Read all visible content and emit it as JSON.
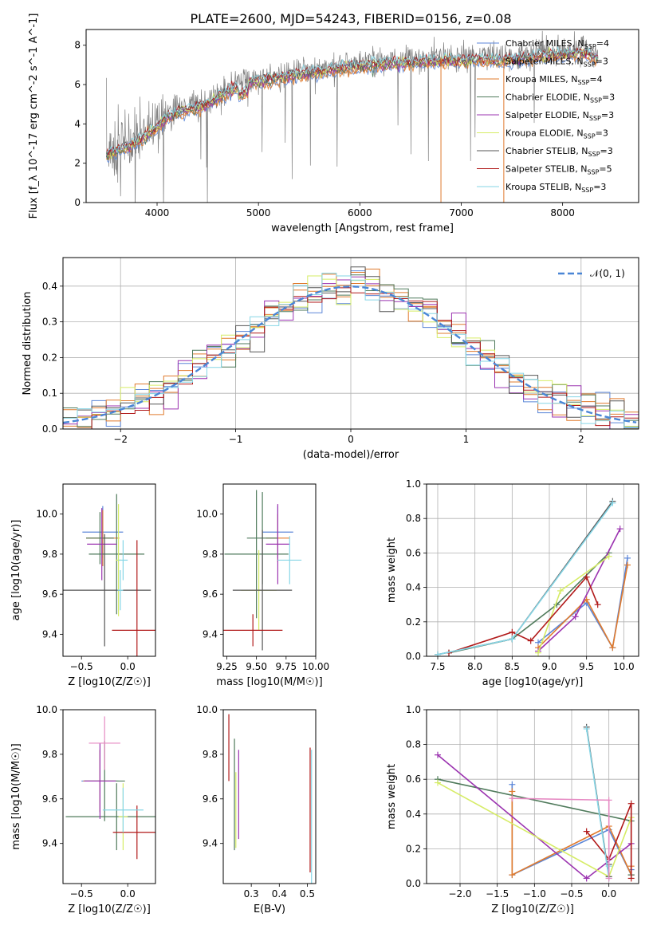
{
  "figure": {
    "title": "PLATE=2600, MJD=54243, FIBERID=0156, z=0.08"
  },
  "models": [
    {
      "name": "Chabrier MILES",
      "nssp": "4",
      "color": "#5b86d8"
    },
    {
      "name": "Salpeter MILES",
      "nssp": "3",
      "color": "#e07b2e"
    },
    {
      "name": "Kroupa MILES",
      "nssp": "4",
      "color": "#e07b2e"
    },
    {
      "name": "Chabrier ELODIE",
      "nssp": "3",
      "color": "#4f7a5b"
    },
    {
      "name": "Salpeter ELODIE",
      "nssp": "3",
      "color": "#9b33b0"
    },
    {
      "name": "Kroupa ELODIE",
      "nssp": "3",
      "color": "#d6ec66"
    },
    {
      "name": "Chabrier STELIB",
      "nssp": "3",
      "color": "#555555"
    },
    {
      "name": "Salpeter STELIB",
      "nssp": "5",
      "color": "#b11a1a"
    },
    {
      "name": "Kroupa STELIB",
      "nssp": "3",
      "color": "#86d6e6"
    }
  ],
  "chart_data": [
    {
      "id": "spectrum",
      "type": "line",
      "title": "PLATE=2600, MJD=54243, FIBERID=0156, z=0.08",
      "xlabel": "wavelength [Angstrom, rest frame]",
      "ylabel": "Flux [f_λ 10^-17 erg cm^-2 s^-1 A^-1]",
      "xlim": [
        3300,
        8750
      ],
      "ylim": [
        0,
        8.8
      ],
      "xticks": [
        "4000",
        "5000",
        "6000",
        "7000",
        "8000"
      ],
      "yticks": [
        "0",
        "2",
        "4",
        "6",
        "8"
      ],
      "legend_position": "top-right",
      "data_color": "#808080",
      "data_anchors": {
        "x": [
          3500,
          3600,
          3700,
          3800,
          3900,
          4000,
          4100,
          4200,
          4300,
          4400,
          4500,
          4700,
          4900,
          5100,
          5300,
          5500,
          5800,
          6000,
          6200,
          6500,
          6700,
          7000,
          7200,
          7400,
          7600,
          7800,
          8000,
          8200,
          8350
        ],
        "y": [
          2.6,
          2.8,
          3.0,
          3.3,
          3.6,
          4.0,
          4.5,
          4.8,
          4.9,
          5.0,
          5.2,
          5.8,
          6.3,
          6.4,
          6.6,
          6.8,
          7.0,
          7.1,
          7.2,
          7.3,
          7.35,
          7.4,
          7.45,
          7.4,
          7.5,
          7.6,
          7.7,
          7.8,
          7.5
        ]
      }
    },
    {
      "id": "residuals",
      "type": "histogram",
      "xlabel": "(data-model)/error",
      "ylabel": "Normed distribution",
      "xlim": [
        -2.5,
        2.5
      ],
      "ylim": [
        0,
        0.48
      ],
      "xticks": [
        "−2",
        "−1",
        "0",
        "1",
        "2"
      ],
      "yticks": [
        "0.0",
        "0.1",
        "0.2",
        "0.3",
        "0.4"
      ],
      "legend_label": "𝒩(0, 1)",
      "legend_position": "top-right",
      "grid": true,
      "reference_curve": "standard normal pdf"
    },
    {
      "id": "age_vs_Z",
      "type": "errorbar",
      "xlabel": "Z [log10(Z/Z☉)]",
      "ylabel": "age [log10(age/yr)]",
      "xlim": [
        -0.7,
        0.3
      ],
      "ylim": [
        9.29,
        10.15
      ],
      "xticks": [
        "−0.5",
        "0.0"
      ],
      "yticks": [
        "9.4",
        "9.6",
        "9.8",
        "10.0"
      ],
      "points": [
        {
          "x": -0.27,
          "y": 9.91,
          "xerr": 0.22,
          "yerr": 0.13,
          "model": 0
        },
        {
          "x": -0.27,
          "y": 9.88,
          "xerr": 0.18,
          "yerr": 0.14,
          "model": 1
        },
        {
          "x": -0.3,
          "y": 9.88,
          "xerr": 0.15,
          "yerr": 0.13,
          "model": 3
        },
        {
          "x": -0.12,
          "y": 9.8,
          "xerr": 0.3,
          "yerr": 0.3,
          "model": 3
        },
        {
          "x": -0.28,
          "y": 9.85,
          "xerr": 0.16,
          "yerr": 0.18,
          "model": 4
        },
        {
          "x": -0.1,
          "y": 9.77,
          "xerr": 0.03,
          "yerr": 0.28,
          "model": 5
        },
        {
          "x": -0.25,
          "y": 9.62,
          "xerr": 0.5,
          "yerr": 0.28,
          "model": 6
        },
        {
          "x": 0.1,
          "y": 9.42,
          "xerr": 0.27,
          "yerr": 0.45,
          "model": 7
        },
        {
          "x": -0.08,
          "y": 9.62,
          "xerr": 0.03,
          "yerr": 0.1,
          "model": 8
        },
        {
          "x": -0.05,
          "y": 9.77,
          "xerr": 0.05,
          "yerr": 0.1,
          "model": 8
        }
      ]
    },
    {
      "id": "age_vs_mass",
      "type": "errorbar",
      "xlabel": "mass [log10(M/M☉)]",
      "ylabel": "",
      "xlim": [
        9.22,
        10.0
      ],
      "ylim": [
        9.29,
        10.15
      ],
      "xticks": [
        "9.25",
        "9.50",
        "9.75",
        "10.00"
      ],
      "yticks": [
        "9.4",
        "9.6",
        "9.8",
        "10.0"
      ],
      "points": [
        {
          "x": 9.68,
          "y": 9.91,
          "xerr": 0.13,
          "yerr": 0.13,
          "model": 0
        },
        {
          "x": 9.68,
          "y": 9.88,
          "xerr": 0.1,
          "yerr": 0.12,
          "model": 1
        },
        {
          "x": 9.55,
          "y": 9.88,
          "xerr": 0.13,
          "yerr": 0.23,
          "model": 3
        },
        {
          "x": 9.5,
          "y": 9.8,
          "xerr": 0.27,
          "yerr": 0.32,
          "model": 3
        },
        {
          "x": 9.68,
          "y": 9.85,
          "xerr": 0.1,
          "yerr": 0.2,
          "model": 4
        },
        {
          "x": 9.52,
          "y": 9.62,
          "xerr": 0.15,
          "yerr": 0.2,
          "model": 5
        },
        {
          "x": 9.55,
          "y": 9.62,
          "xerr": 0.25,
          "yerr": 0.3,
          "model": 6
        },
        {
          "x": 9.47,
          "y": 9.42,
          "xerr": 0.25,
          "yerr": 0.08,
          "model": 7
        },
        {
          "x": 9.78,
          "y": 9.77,
          "xerr": 0.1,
          "yerr": 0.12,
          "model": 8
        }
      ]
    },
    {
      "id": "massweight_vs_age",
      "type": "line",
      "xlabel": "age [log10(age/yr)]",
      "ylabel": "mass weight",
      "xlim": [
        7.35,
        10.2
      ],
      "ylim": [
        0,
        1.0
      ],
      "xticks": [
        "7.5",
        "8.0",
        "8.5",
        "9.0",
        "9.5",
        "10.0"
      ],
      "yticks": [
        "0.0",
        "0.2",
        "0.4",
        "0.6",
        "0.8",
        "1.0"
      ],
      "grid": true,
      "series": [
        {
          "model": 0,
          "x": [
            8.85,
            9.5,
            9.85,
            10.05
          ],
          "y": [
            0.08,
            0.31,
            0.05,
            0.57
          ]
        },
        {
          "model": 1,
          "x": [
            8.85,
            9.5,
            9.85,
            10.05
          ],
          "y": [
            0.05,
            0.33,
            0.05,
            0.53
          ]
        },
        {
          "model": 3,
          "x": [
            7.65,
            8.5,
            9.1,
            9.8
          ],
          "y": [
            0.02,
            0.1,
            0.3,
            0.6
          ]
        },
        {
          "model": 4,
          "x": [
            8.85,
            9.35,
            9.95
          ],
          "y": [
            0.03,
            0.23,
            0.74
          ]
        },
        {
          "model": 5,
          "x": [
            8.85,
            9.15,
            9.8
          ],
          "y": [
            0.02,
            0.38,
            0.58
          ]
        },
        {
          "model": 6,
          "x": [
            7.5,
            8.5,
            9.85
          ],
          "y": [
            0.01,
            0.1,
            0.9
          ]
        },
        {
          "model": 7,
          "x": [
            7.65,
            8.5,
            8.75,
            9.5,
            9.65
          ],
          "y": [
            0.02,
            0.14,
            0.09,
            0.46,
            0.3
          ]
        },
        {
          "model": 8,
          "x": [
            7.5,
            8.5,
            9.85
          ],
          "y": [
            0.01,
            0.1,
            0.89
          ]
        }
      ]
    },
    {
      "id": "mass_vs_Z",
      "type": "errorbar",
      "xlabel": "Z [log10(Z/Z☉)]",
      "ylabel": "mass [log10(M/M☉)]",
      "xlim": [
        -0.7,
        0.3
      ],
      "ylim": [
        9.22,
        10.0
      ],
      "xticks": [
        "−0.5",
        "0.0"
      ],
      "yticks": [
        "9.4",
        "9.6",
        "9.8",
        "10.0"
      ],
      "points": [
        {
          "x": -0.3,
          "y": 9.68,
          "xerr": 0.2,
          "yerr": 0.14,
          "model": 0
        },
        {
          "x": -0.3,
          "y": 9.68,
          "xerr": 0.18,
          "yerr": 0.14,
          "model": 1
        },
        {
          "x": -0.25,
          "y": 9.68,
          "xerr": 0.22,
          "yerr": 0.18,
          "model": 3
        },
        {
          "x": -0.12,
          "y": 9.52,
          "xerr": 0.55,
          "yerr": 0.15,
          "model": 3
        },
        {
          "x": -0.3,
          "y": 9.68,
          "xerr": 0.17,
          "yerr": 0.17,
          "model": 4
        },
        {
          "x": -0.25,
          "y": 9.85,
          "xerr": 0.17,
          "yerr": 0.12,
          "model": 7
        },
        {
          "x": -0.05,
          "y": 9.52,
          "xerr": 0.05,
          "yerr": 0.15,
          "model": 5
        },
        {
          "x": 0.1,
          "y": 9.45,
          "xerr": 0.26,
          "yerr": 0.12,
          "model": 7
        },
        {
          "x": -0.05,
          "y": 9.55,
          "xerr": 0.22,
          "yerr": 0.1,
          "model": 8
        }
      ]
    },
    {
      "id": "mass_vs_ebv",
      "type": "errorbar",
      "xlabel": "E(B-V)",
      "ylabel": "",
      "xlim": [
        0.2,
        0.53
      ],
      "ylim": [
        9.22,
        10.0
      ],
      "xticks": [
        "0.3",
        "0.4",
        "0.5"
      ],
      "yticks": [
        "9.4",
        "9.6",
        "9.8",
        "10.0"
      ],
      "points": [
        {
          "x": 0.22,
          "y": 9.83,
          "yerr": 0.15,
          "model": 7
        },
        {
          "x": 0.24,
          "y": 9.62,
          "yerr": 0.25,
          "model": 3
        },
        {
          "x": 0.245,
          "y": 9.55,
          "yerr": 0.17,
          "model": 5
        },
        {
          "x": 0.255,
          "y": 9.62,
          "yerr": 0.2,
          "model": 4
        },
        {
          "x": 0.51,
          "y": 9.55,
          "yerr": 0.28,
          "model": 7
        },
        {
          "x": 0.515,
          "y": 9.52,
          "yerr": 0.3,
          "model": 8
        }
      ]
    },
    {
      "id": "massweight_vs_Z",
      "type": "line",
      "xlabel": "Z [log10(Z/Z☉)]",
      "ylabel": "mass weight",
      "xlim": [
        -2.45,
        0.4
      ],
      "ylim": [
        0,
        1.0
      ],
      "xticks": [
        "−2.0",
        "−1.5",
        "−1.0",
        "−0.5",
        "0.0"
      ],
      "yticks": [
        "0.0",
        "0.2",
        "0.4",
        "0.6",
        "0.8",
        "1.0"
      ],
      "grid": true,
      "series": [
        {
          "model": 0,
          "x": [
            -1.3,
            -1.3,
            0.0,
            0.3,
            0.3
          ],
          "y": [
            0.57,
            0.05,
            0.31,
            0.05,
            0.08
          ]
        },
        {
          "model": 1,
          "x": [
            -1.3,
            -1.3,
            0.0,
            0.3,
            0.3
          ],
          "y": [
            0.53,
            0.05,
            0.33,
            0.05,
            0.1
          ]
        },
        {
          "model": 3,
          "x": [
            -2.3,
            0.3,
            0.3
          ],
          "y": [
            0.6,
            0.36,
            0.05
          ]
        },
        {
          "model": 4,
          "x": [
            -2.3,
            -0.3,
            0.3
          ],
          "y": [
            0.74,
            0.03,
            0.23
          ]
        },
        {
          "model": 5,
          "x": [
            -2.3,
            0.0,
            0.3
          ],
          "y": [
            0.58,
            0.04,
            0.38
          ]
        },
        {
          "model": 6,
          "x": [
            -0.3,
            0.0,
            0.0
          ],
          "y": [
            0.9,
            0.04,
            0.11
          ]
        },
        {
          "model": 7,
          "x": [
            -0.3,
            0.0,
            0.3,
            0.3
          ],
          "y": [
            0.3,
            0.14,
            0.46,
            0.03
          ]
        },
        {
          "model": 8,
          "x": [
            -0.3,
            0.0,
            0.0
          ],
          "y": [
            0.89,
            0.03,
            0.1
          ]
        },
        {
          "model": 2,
          "x": [
            -1.3,
            0.0,
            0.0
          ],
          "y": [
            0.49,
            0.48,
            0.03
          ]
        }
      ],
      "extra_color": "#e68ac3"
    }
  ]
}
